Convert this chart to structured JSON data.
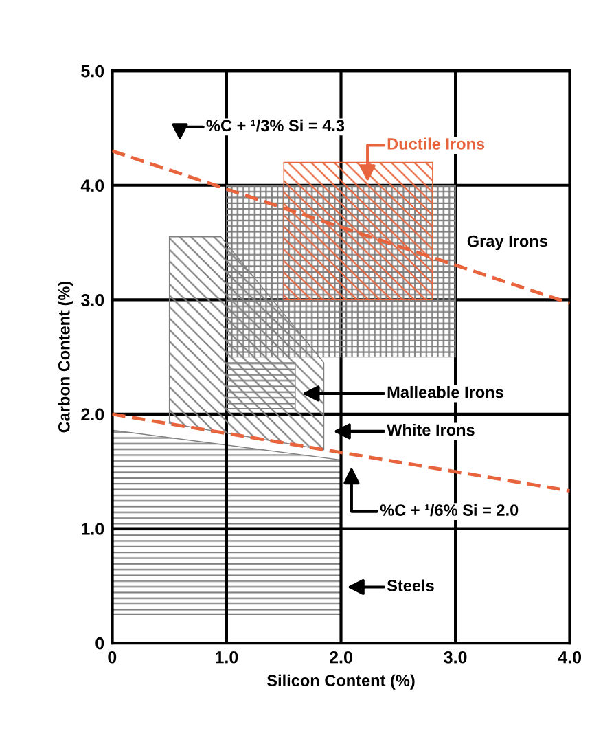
{
  "chart_data": {
    "type": "line",
    "xlabel": "Silicon Content (%)",
    "ylabel": "Carbon Content (%)",
    "xlim": [
      0,
      4
    ],
    "ylim": [
      0,
      5
    ],
    "xticks": [
      0,
      {
        "value": 1,
        "label": "1.0"
      },
      {
        "value": 2,
        "label": "2.0"
      },
      {
        "value": 3,
        "label": "3.0"
      },
      {
        "value": 4,
        "label": "4.0"
      }
    ],
    "yticks": [
      0,
      {
        "value": 1,
        "label": "1.0"
      },
      {
        "value": 2,
        "label": "2.0"
      },
      {
        "value": 3,
        "label": "3.0"
      },
      {
        "value": 4,
        "label": "4.0"
      },
      {
        "value": 5,
        "label": "5.0"
      }
    ],
    "grid": true,
    "series": [
      {
        "type": "area",
        "color": "#808080",
        "x": [
          0,
          2,
          2,
          0
        ],
        "values": [
          1.86,
          1.6,
          0.25,
          0.25
        ]
      },
      {
        "type": "area",
        "color": "#808080",
        "x": [
          0.5,
          0.95,
          1.85,
          1.85,
          0.5
        ],
        "values": [
          3.55,
          3.55,
          2.45,
          1.69,
          1.92
        ]
      },
      {
        "type": "area",
        "color": "#808080",
        "x": [
          1.0,
          3.0,
          3.0,
          1.0
        ],
        "values": [
          4.0,
          4.0,
          2.5,
          2.5
        ]
      },
      {
        "type": "area",
        "color": "#808080",
        "x": [
          1.0,
          1.6,
          1.6,
          1.0
        ],
        "values": [
          2.45,
          2.45,
          2.05,
          2.05
        ]
      },
      {
        "type": "area",
        "color": "#e8643c",
        "x": [
          1.5,
          2.8,
          2.8,
          1.5
        ],
        "values": [
          4.2,
          4.2,
          3.0,
          3.0
        ]
      },
      {
        "color": "#e8643c",
        "line_style": "dashed",
        "x": [
          0,
          4
        ],
        "values": [
          4.3,
          2.97
        ]
      },
      {
        "color": "#e8643c",
        "line_style": "dashed",
        "x": [
          0,
          4
        ],
        "values": [
          2.0,
          1.33
        ]
      }
    ],
    "annotations": [
      "%C + ¹/3% Si = 4.3",
      "Ductile Irons",
      "Gray Irons",
      "Malleable Irons",
      "White Irons",
      "%C + ¹/6% Si = 2.0",
      "Steels"
    ]
  }
}
